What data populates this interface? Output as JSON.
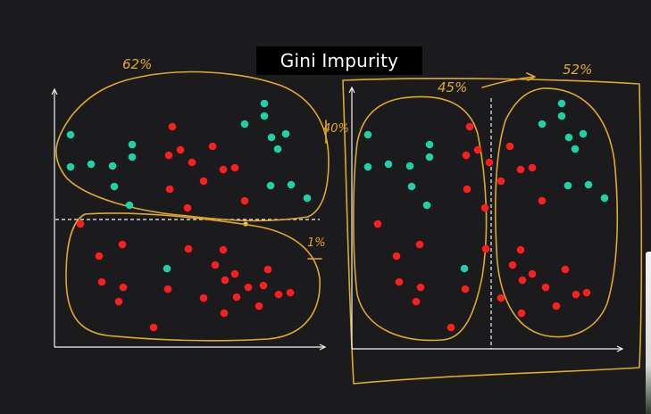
{
  "title": "Gini Impurity",
  "annotations": {
    "left_top": "62%",
    "left_side": "40%",
    "left_bottom": "1%",
    "right_left": "45%",
    "right_right": "52%"
  },
  "colors": {
    "background": "#1b1b1d",
    "title_bg": "#000000",
    "ink": "#e1a72e",
    "red": "#ff1e1e",
    "green": "#1fd1a5",
    "axis": "#f2f2f2"
  },
  "icons": {
    "axis_arrows": "arrow-head-icon"
  }
}
